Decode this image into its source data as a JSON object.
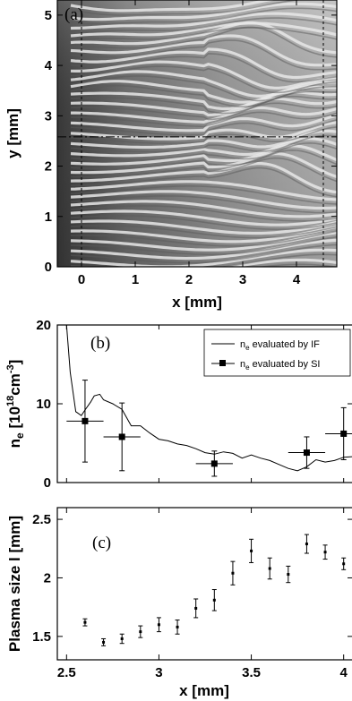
{
  "panel_a": {
    "label": "(a)",
    "xlabel": "x [mm]",
    "ylabel": "y [mm]",
    "xticks": [
      "0",
      "1",
      "2",
      "3",
      "4"
    ],
    "yticks": [
      "0",
      "1",
      "2",
      "3",
      "4",
      "5"
    ],
    "xlim": [
      -0.45,
      4.75
    ],
    "ylim": [
      0,
      5.3
    ],
    "vline_x": [
      0,
      4.5
    ],
    "hline_y": 2.58,
    "image": "interferogram"
  },
  "chart_data": [
    {
      "type": "line",
      "panel_label": "(b)",
      "xlabel": "",
      "ylabel": "n_e [10^18 cm^-3]",
      "ylabel_parts": {
        "main": "n",
        "sub": "e",
        "open": " [10",
        "exp1": "18",
        "unit": "cm",
        "exp2": "-3",
        "close": "]"
      },
      "xlim": [
        2.45,
        4.05
      ],
      "ylim": [
        0,
        20
      ],
      "yticks": [
        "0",
        "10",
        "20"
      ],
      "legend": {
        "position": "top-right"
      },
      "series": [
        {
          "name": "n_e evaluated by IF",
          "name_parts": {
            "main": "n",
            "sub": "e",
            "rest": " evaluated by IF"
          },
          "x": [
            2.5,
            2.52,
            2.55,
            2.58,
            2.6,
            2.63,
            2.65,
            2.68,
            2.7,
            2.75,
            2.8,
            2.85,
            2.9,
            2.95,
            3.0,
            3.05,
            3.1,
            3.15,
            3.2,
            3.25,
            3.3,
            3.35,
            3.4,
            3.45,
            3.5,
            3.55,
            3.6,
            3.65,
            3.7,
            3.75,
            3.8,
            3.85,
            3.9,
            3.95,
            4.0,
            4.05
          ],
          "y": [
            20,
            14,
            9.0,
            8.5,
            9.2,
            10.2,
            11.0,
            11.2,
            10.5,
            10.0,
            9.3,
            7.2,
            7.2,
            6.3,
            5.5,
            5.3,
            4.9,
            4.7,
            4.3,
            3.8,
            3.6,
            3.9,
            3.7,
            3.1,
            3.5,
            3.1,
            2.8,
            2.3,
            1.8,
            1.5,
            2.0,
            2.9,
            2.6,
            2.8,
            3.2,
            3.3
          ]
        },
        {
          "name": "n_e evaluated by SI",
          "name_parts": {
            "main": "n",
            "sub": "e",
            "rest": " evaluated by SI"
          },
          "x": [
            2.6,
            2.8,
            3.3,
            3.8,
            4.0
          ],
          "y": [
            7.8,
            5.8,
            2.4,
            3.8,
            6.2
          ],
          "yerr": [
            5.2,
            4.3,
            1.6,
            2.0,
            3.3
          ],
          "xerr": [
            0.1,
            0.1,
            0.1,
            0.1,
            0.1
          ]
        }
      ]
    },
    {
      "type": "scatter",
      "panel_label": "(c)",
      "xlabel": "x [mm]",
      "ylabel": "Plasma size l [mm]",
      "xlim": [
        2.45,
        4.05
      ],
      "ylim": [
        1.3,
        2.6
      ],
      "xticks": [
        "2.5",
        "3",
        "3.5",
        "4"
      ],
      "yticks": [
        "1.5",
        "2",
        "2.5"
      ],
      "series": [
        {
          "x": [
            2.6,
            2.7,
            2.8,
            2.9,
            3.0,
            3.1,
            3.2,
            3.3,
            3.4,
            3.5,
            3.6,
            3.7,
            3.8,
            3.9,
            4.0
          ],
          "y": [
            1.62,
            1.45,
            1.48,
            1.54,
            1.6,
            1.58,
            1.74,
            1.81,
            2.04,
            2.23,
            2.08,
            2.03,
            2.29,
            2.22,
            2.12
          ],
          "yerr": [
            0.03,
            0.03,
            0.04,
            0.05,
            0.06,
            0.06,
            0.08,
            0.09,
            0.1,
            0.1,
            0.09,
            0.07,
            0.08,
            0.06,
            0.05
          ]
        }
      ]
    }
  ]
}
